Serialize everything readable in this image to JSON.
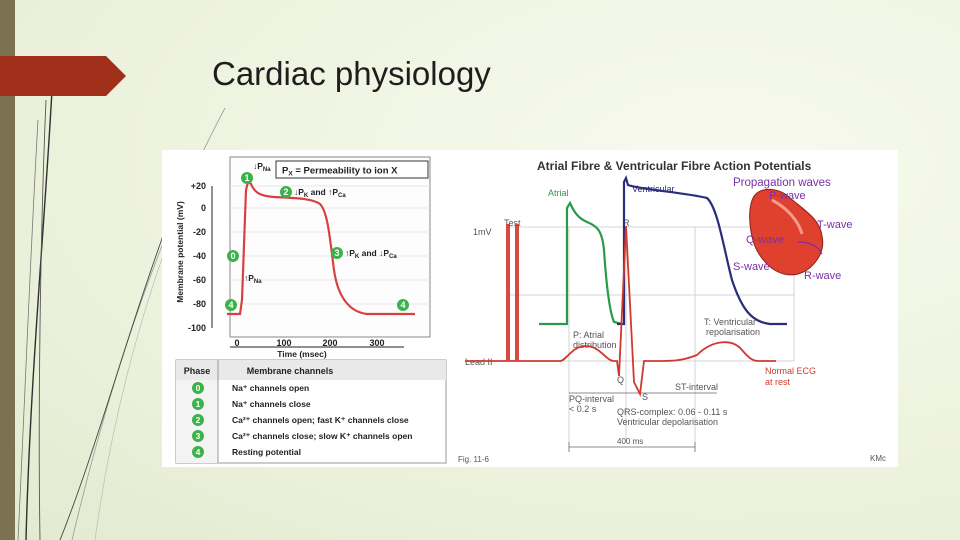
{
  "slide": {
    "title": "Cardiac physiology"
  },
  "left_panel": {
    "legend_box": "P",
    "legend_box_sub": "X",
    "legend_box_rest": " = Permeability to ion X",
    "y_axis_label": "Membrane potential (mV)",
    "y_ticks": [
      "+20",
      "0",
      "-20",
      "-40",
      "-60",
      "-80",
      "-100"
    ],
    "x_ticks": [
      "0",
      "100",
      "200",
      "300"
    ],
    "x_axis_label": "Time (msec)",
    "annotations": {
      "phase0": {
        "pre": "↑P",
        "sub": "Na"
      },
      "phase1": {
        "pre": "↓P",
        "sub": "Na"
      },
      "phase2": {
        "a": "↓P",
        "a_sub": "K",
        "mid": " and ↑P",
        "b_sub": "Ca"
      },
      "phase3": {
        "a": "↑P",
        "a_sub": "K",
        "mid": " and ↓P",
        "b_sub": "Ca"
      }
    },
    "phase_markers": [
      "0",
      "1",
      "2",
      "3",
      "4",
      "4"
    ],
    "table": {
      "headers": [
        "Phase",
        "Membrane channels"
      ],
      "rows": [
        {
          "phase": "0",
          "text": "Na⁺ channels open"
        },
        {
          "phase": "1",
          "text": "Na⁺ channels close"
        },
        {
          "phase": "2",
          "text": "Ca²⁺ channels open; fast K⁺ channels close"
        },
        {
          "phase": "3",
          "text": "Ca²⁺ channels close; slow K⁺ channels open"
        },
        {
          "phase": "4",
          "text": "Resting potential"
        }
      ]
    }
  },
  "right_panel": {
    "title": "Atrial Fibre & Ventricular Fibre Action Potentials",
    "labels": {
      "atrial": "Atrial",
      "ventricular": "Ventricular",
      "one_mv": "1mV",
      "test": "Test",
      "r": "R",
      "lead_ii": "Lead II",
      "p_line1": "P: Atrial",
      "p_line2": "distribution",
      "t_line1": "T: Ventricular",
      "t_line2": "repolarisation",
      "q": "Q",
      "s": "S",
      "normal_ecg_line1": "Normal ECG",
      "normal_ecg_line2": "at rest",
      "st_interval": "ST-interval",
      "pq_line1": "PQ-interval",
      "pq_line2": "< 0.2 s",
      "qrs_line1": "QRS-complex: 0.06 - 0.11 s",
      "qrs_line2": "Ventricular depolarisation",
      "ms400": "400 ms",
      "fig": "Fig. 11-6",
      "kmc": "KMc"
    },
    "heart_labels": {
      "propagation": "Propagation waves",
      "p_wave": "P-wave",
      "t_wave": "T-wave",
      "q_wave": "Q-wave",
      "s_wave": "S-wave",
      "r_wave": "R-wave"
    }
  },
  "colors": {
    "accent_red": "#a0301a",
    "sidebar": "#7c7151",
    "ap_red": "#d94040",
    "phase_green": "#3cb24a",
    "atrial_green": "#2a9a4a",
    "ventricular_navy": "#2b2c7a",
    "ecg_red": "#d0392c",
    "heart_purple": "#7a2fa8"
  }
}
